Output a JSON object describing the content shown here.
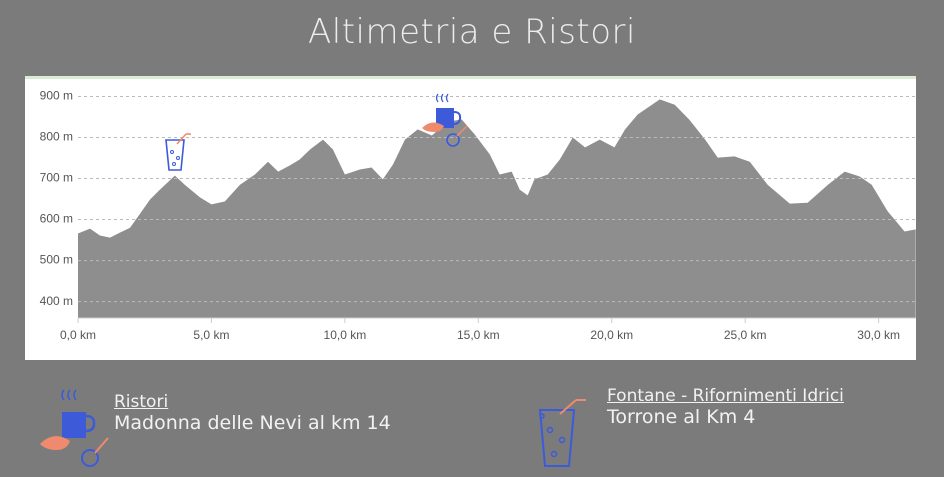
{
  "chart_data": {
    "type": "area",
    "title": "Altimetria e Ristori",
    "x": [
      0,
      0.45,
      0.82,
      1.2,
      1.57,
      1.95,
      2.3,
      2.7,
      3.07,
      3.63,
      4.0,
      4.57,
      5.0,
      5.5,
      6.07,
      6.63,
      7.12,
      7.5,
      7.94,
      8.3,
      8.7,
      9.18,
      9.55,
      10.0,
      10.56,
      11.0,
      11.42,
      11.8,
      12.25,
      12.73,
      13.26,
      13.86,
      14.38,
      14.87,
      15.43,
      15.8,
      16.25,
      16.55,
      16.85,
      17.1,
      17.6,
      18.05,
      18.54,
      19.0,
      19.55,
      20.1,
      20.5,
      20.97,
      21.8,
      22.36,
      22.9,
      23.5,
      23.97,
      24.6,
      25.17,
      25.84,
      26.67,
      27.34,
      28.1,
      28.73,
      29.29,
      29.74,
      30.34,
      30.97,
      31.39
    ],
    "series": [
      {
        "color": "#8e8e8e",
        "values": [
          566,
          578,
          561,
          556,
          568,
          580,
          612,
          649,
          673,
          707,
          685,
          654,
          637,
          644,
          685,
          710,
          741,
          717,
          732,
          746,
          771,
          795,
          771,
          710,
          722,
          727,
          698,
          734,
          795,
          820,
          805,
          839,
          844,
          807,
          759,
          710,
          717,
          673,
          659,
          698,
          710,
          746,
          800,
          776,
          795,
          776,
          820,
          856,
          893,
          880,
          844,
          795,
          751,
          754,
          741,
          685,
          639,
          641,
          685,
          717,
          705,
          685,
          620,
          571,
          576
        ]
      }
    ],
    "xlim": [
      0,
      31.4
    ],
    "ylim": [
      360,
      950
    ],
    "xticks": [
      {
        "value": 0,
        "label": "0,0 km"
      },
      {
        "value": 5,
        "label": "5,0 km"
      },
      {
        "value": 10,
        "label": "10,0 km"
      },
      {
        "value": 15,
        "label": "15,0 km"
      },
      {
        "value": 20,
        "label": "20,0 km"
      },
      {
        "value": 25,
        "label": "25,0 km"
      },
      {
        "value": 30,
        "label": "30,0 km"
      }
    ],
    "yticks": [
      {
        "value": 400,
        "label": "400 m"
      },
      {
        "value": 500,
        "label": "500 m"
      },
      {
        "value": 600,
        "label": "600 m"
      },
      {
        "value": 700,
        "label": "700 m"
      },
      {
        "value": 800,
        "label": "800 m"
      },
      {
        "value": 900,
        "label": "900 m"
      }
    ],
    "grid": true
  },
  "legend": {
    "items": [
      {
        "title": "Ristori",
        "text": "Madonna delle Nevi al km 14"
      },
      {
        "title": "Fontane - Rifornimenti Idrici",
        "text": "Torrone al Km 4"
      }
    ]
  }
}
